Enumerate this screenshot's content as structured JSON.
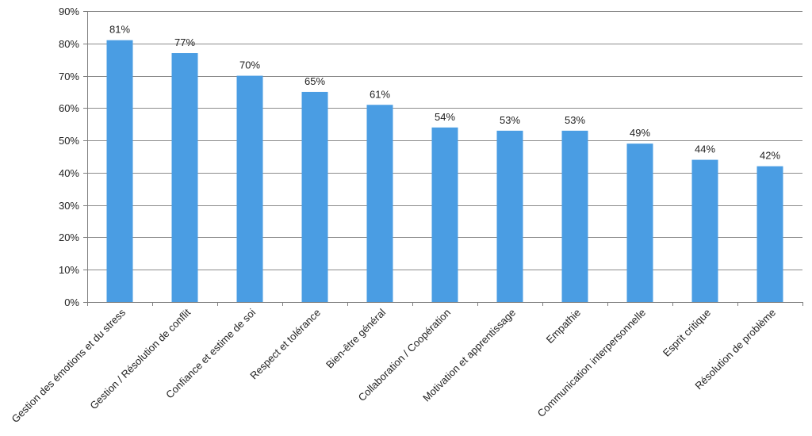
{
  "chart_data": {
    "type": "bar",
    "title": "",
    "xlabel": "",
    "ylabel": "",
    "categories": [
      "Gestion des émotions et du stress",
      "Gestion / Résolution de conflit",
      "Confiance et estime de soi",
      "Respect et tolérance",
      "Bien-être général",
      "Collaboration / Coopération",
      "Motivation et apprentissage",
      "Empathie",
      "Communication interpersonnelle",
      "Esprit critique",
      "Résolution de problème"
    ],
    "values": [
      81,
      77,
      70,
      65,
      61,
      54,
      53,
      53,
      49,
      44,
      42
    ],
    "value_labels": [
      "81%",
      "77%",
      "70%",
      "65%",
      "61%",
      "54%",
      "53%",
      "53%",
      "49%",
      "44%",
      "42%"
    ],
    "ylim": [
      0,
      90
    ],
    "yticks": [
      0,
      10,
      20,
      30,
      40,
      50,
      60,
      70,
      80,
      90
    ],
    "ytick_labels": [
      "0%",
      "10%",
      "20%",
      "30%",
      "40%",
      "50%",
      "60%",
      "70%",
      "80%",
      "90%"
    ],
    "grid": true,
    "legend": "none",
    "bar_color": "#4a9de3",
    "grid_color": "#8c8c8c",
    "axis_color": "#7f7f7f"
  }
}
